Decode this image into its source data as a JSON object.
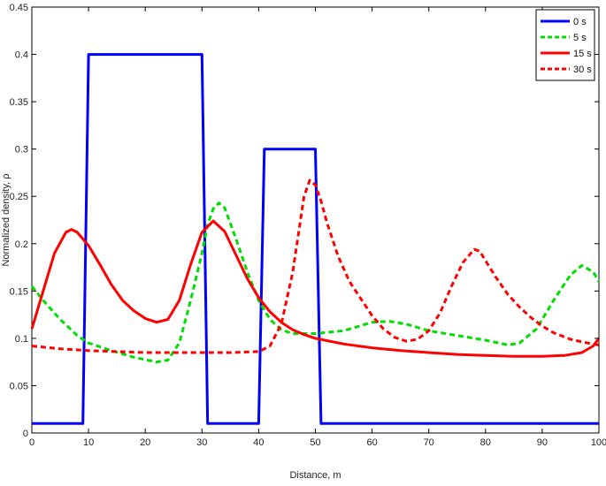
{
  "chart_data": {
    "type": "line",
    "xlabel": "Distance, m",
    "ylabel": "Normalized density, ρ",
    "xlim": [
      0,
      100
    ],
    "ylim": [
      0,
      0.45
    ],
    "xticks": [
      "0",
      "10",
      "20",
      "30",
      "40",
      "50",
      "60",
      "70",
      "80",
      "90",
      "100"
    ],
    "yticks": [
      "0",
      "0.05",
      "0.1",
      "0.15",
      "0.2",
      "0.25",
      "0.3",
      "0.35",
      "0.4",
      "0.45"
    ],
    "legend_position": "top-right",
    "grid": false,
    "series": [
      {
        "name": "0 s",
        "color": "#0000ff",
        "dash": "solid",
        "points": [
          [
            0,
            0.01
          ],
          [
            9,
            0.01
          ],
          [
            10,
            0.4
          ],
          [
            30,
            0.4
          ],
          [
            31,
            0.01
          ],
          [
            40,
            0.01
          ],
          [
            41,
            0.3
          ],
          [
            50,
            0.3
          ],
          [
            51,
            0.01
          ],
          [
            100,
            0.01
          ]
        ]
      },
      {
        "name": "5 s",
        "color": "#00dd00",
        "dash": "dashed",
        "points": [
          [
            0,
            0.155
          ],
          [
            2,
            0.14
          ],
          [
            5,
            0.12
          ],
          [
            8,
            0.103
          ],
          [
            10,
            0.095
          ],
          [
            14,
            0.087
          ],
          [
            18,
            0.08
          ],
          [
            22,
            0.075
          ],
          [
            24,
            0.077
          ],
          [
            26,
            0.095
          ],
          [
            28,
            0.14
          ],
          [
            30,
            0.19
          ],
          [
            31,
            0.22
          ],
          [
            32,
            0.237
          ],
          [
            33,
            0.243
          ],
          [
            34,
            0.238
          ],
          [
            36,
            0.205
          ],
          [
            38,
            0.17
          ],
          [
            40,
            0.14
          ],
          [
            42,
            0.12
          ],
          [
            44,
            0.109
          ],
          [
            46,
            0.105
          ],
          [
            50,
            0.105
          ],
          [
            55,
            0.108
          ],
          [
            60,
            0.117
          ],
          [
            63,
            0.118
          ],
          [
            66,
            0.115
          ],
          [
            70,
            0.108
          ],
          [
            75,
            0.103
          ],
          [
            80,
            0.098
          ],
          [
            84,
            0.093
          ],
          [
            86,
            0.095
          ],
          [
            89,
            0.11
          ],
          [
            92,
            0.14
          ],
          [
            95,
            0.167
          ],
          [
            97,
            0.177
          ],
          [
            99,
            0.17
          ],
          [
            100,
            0.16
          ]
        ]
      },
      {
        "name": "15 s",
        "color": "#ff0000",
        "dash": "solid",
        "points": [
          [
            0,
            0.11
          ],
          [
            2,
            0.15
          ],
          [
            4,
            0.19
          ],
          [
            6,
            0.212
          ],
          [
            7,
            0.215
          ],
          [
            8,
            0.212
          ],
          [
            10,
            0.198
          ],
          [
            12,
            0.178
          ],
          [
            14,
            0.157
          ],
          [
            16,
            0.14
          ],
          [
            18,
            0.129
          ],
          [
            20,
            0.121
          ],
          [
            22,
            0.117
          ],
          [
            24,
            0.12
          ],
          [
            26,
            0.14
          ],
          [
            28,
            0.178
          ],
          [
            30,
            0.212
          ],
          [
            32,
            0.224
          ],
          [
            34,
            0.213
          ],
          [
            36,
            0.188
          ],
          [
            38,
            0.163
          ],
          [
            40,
            0.143
          ],
          [
            42,
            0.128
          ],
          [
            44,
            0.117
          ],
          [
            46,
            0.109
          ],
          [
            48,
            0.104
          ],
          [
            50,
            0.1
          ],
          [
            55,
            0.094
          ],
          [
            60,
            0.09
          ],
          [
            65,
            0.087
          ],
          [
            70,
            0.085
          ],
          [
            75,
            0.083
          ],
          [
            80,
            0.082
          ],
          [
            85,
            0.081
          ],
          [
            90,
            0.081
          ],
          [
            94,
            0.082
          ],
          [
            97,
            0.085
          ],
          [
            99,
            0.092
          ],
          [
            100,
            0.1
          ]
        ]
      },
      {
        "name": "30 s",
        "color": "#ff0000",
        "dash": "dashed",
        "points": [
          [
            0,
            0.092
          ],
          [
            5,
            0.089
          ],
          [
            10,
            0.087
          ],
          [
            15,
            0.086
          ],
          [
            20,
            0.085
          ],
          [
            25,
            0.085
          ],
          [
            30,
            0.085
          ],
          [
            35,
            0.085
          ],
          [
            40,
            0.086
          ],
          [
            42,
            0.092
          ],
          [
            44,
            0.115
          ],
          [
            46,
            0.17
          ],
          [
            47,
            0.21
          ],
          [
            48,
            0.25
          ],
          [
            49,
            0.267
          ],
          [
            50,
            0.262
          ],
          [
            51,
            0.245
          ],
          [
            52,
            0.223
          ],
          [
            54,
            0.187
          ],
          [
            56,
            0.16
          ],
          [
            58,
            0.142
          ],
          [
            60,
            0.124
          ],
          [
            62,
            0.11
          ],
          [
            64,
            0.101
          ],
          [
            66,
            0.097
          ],
          [
            68,
            0.099
          ],
          [
            70,
            0.108
          ],
          [
            72,
            0.127
          ],
          [
            74,
            0.155
          ],
          [
            76,
            0.18
          ],
          [
            78,
            0.194
          ],
          [
            79,
            0.192
          ],
          [
            80,
            0.182
          ],
          [
            82,
            0.163
          ],
          [
            84,
            0.146
          ],
          [
            86,
            0.133
          ],
          [
            88,
            0.122
          ],
          [
            90,
            0.113
          ],
          [
            92,
            0.106
          ],
          [
            95,
            0.099
          ],
          [
            98,
            0.095
          ],
          [
            100,
            0.093
          ]
        ]
      }
    ]
  }
}
